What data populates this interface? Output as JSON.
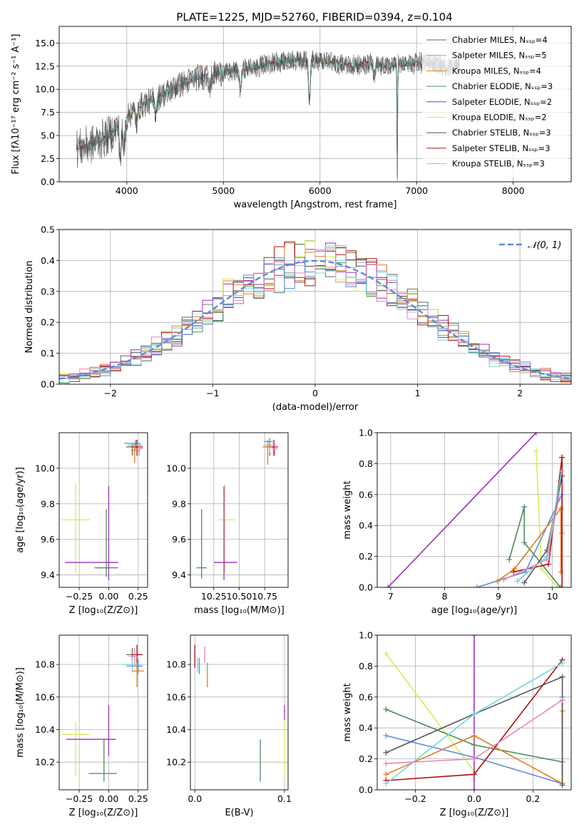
{
  "figure": {
    "title": "PLATE=1225, MJD=52760, FIBERID=0394, z=0.104"
  },
  "series_colors": {
    "Chabrier MILES": "#666666",
    "Salpeter MILES": "#a0a0a0",
    "Kroupa MILES": "#e07b1a",
    "Chabrier ELODIE": "#4f8a5a",
    "Salpeter ELODIE": "#9b2fbd",
    "Kroupa ELODIE": "#d6ec5a",
    "Chabrier STELIB": "#555555",
    "Salpeter STELIB": "#b01010",
    "Kroupa STELIB": "#70d6de",
    "extra_blue": "#5b8bd9",
    "extra_pink": "#e887b8"
  },
  "chart_data": [
    {
      "id": "spectrum",
      "type": "line",
      "xlabel": "wavelength [Angstrom, rest frame]",
      "ylabel": "Flux [fλ10⁻¹⁷ erg cm⁻² s⁻¹ A⁻¹]",
      "xlim": [
        3300,
        8600
      ],
      "ylim": [
        0,
        16.8
      ],
      "xticks": [
        "4000",
        "5000",
        "6000",
        "7000",
        "8000"
      ],
      "yticks": [
        "0.0",
        "2.5",
        "5.0",
        "7.5",
        "10.0",
        "12.5",
        "15.0"
      ],
      "legend_position": "top-right",
      "legend": [
        "Chabrier MILES, Nₛₛₚ=4",
        "Salpeter MILES, Nₛₛₚ=5",
        "Kroupa MILES, Nₛₛₚ=4",
        "Chabrier ELODIE, Nₛₛₚ=3",
        "Salpeter ELODIE, Nₛₛₚ=2",
        "Kroupa ELODIE, Nₛₛₚ=2",
        "Chabrier STELIB, Nₛₛₚ=3",
        "Salpeter STELIB, Nₛₛₚ=3",
        "Kroupa STELIB, Nₛₛₚ=3"
      ],
      "continuum": {
        "x": [
          3500,
          3650,
          3800,
          3950,
          4100,
          4300,
          4500,
          4700,
          4900,
          5100,
          5300,
          5500,
          5700,
          5900,
          6100,
          6300,
          6500,
          6700,
          6900,
          7100,
          7300,
          7450
        ],
        "y": [
          3.6,
          4.1,
          4.9,
          6.3,
          8.0,
          9.0,
          10.2,
          11.2,
          11.6,
          12.0,
          12.3,
          12.8,
          13.2,
          13.2,
          12.9,
          12.6,
          12.8,
          12.5,
          12.7,
          12.9,
          12.4,
          12.6
        ]
      },
      "absorption_features": [
        {
          "x": 3934,
          "depth": 3.5
        },
        {
          "x": 3969,
          "depth": 3.0
        },
        {
          "x": 4102,
          "depth": 1.8
        },
        {
          "x": 4300,
          "depth": 1.5
        },
        {
          "x": 4861,
          "depth": 1.6
        },
        {
          "x": 5175,
          "depth": 2.2
        },
        {
          "x": 5890,
          "depth": 4.0
        },
        {
          "x": 6563,
          "depth": 1.5
        },
        {
          "x": 6800,
          "depth": 12.0
        }
      ]
    },
    {
      "id": "residuals",
      "type": "bar",
      "xlabel": "(data-model)/error",
      "ylabel": "Normed distribution",
      "xlim": [
        -2.5,
        2.5
      ],
      "ylim": [
        0,
        0.5
      ],
      "xticks": [
        "−2",
        "−1",
        "0",
        "1",
        "2"
      ],
      "yticks": [
        "0.0",
        "0.1",
        "0.2",
        "0.3",
        "0.4",
        "0.5"
      ],
      "legend_position": "top-right",
      "legend": [
        "𝒩(0, 1)"
      ],
      "bin_width": 0.1,
      "n_histograms": 9
    },
    {
      "id": "age-vs-Z",
      "type": "scatter",
      "xlabel": "Z [log₁₀(Z/Z⊙)]",
      "ylabel": "age  [log₁₀(age/yr)]",
      "xlim": [
        -0.42,
        0.33
      ],
      "ylim": [
        9.33,
        10.2
      ],
      "xticks": [
        "−0.25",
        "0.00",
        "0.25"
      ],
      "yticks": [
        "9.4",
        "9.6",
        "9.8",
        "10.0"
      ],
      "points": [
        {
          "s": "Kroupa ELODIE",
          "x": -0.28,
          "xe": [
            0.12,
            0.12
          ],
          "y": 9.71,
          "ye": [
            0.3,
            0.2
          ]
        },
        {
          "s": "Salpeter ELODIE",
          "x": 0.0,
          "xe": [
            0.37,
            0.08
          ],
          "y": 9.47,
          "ye": [
            0.1,
            0.43
          ]
        },
        {
          "s": "Chabrier ELODIE",
          "x": -0.02,
          "xe": [
            0.1,
            0.1
          ],
          "y": 9.44,
          "ye": [
            0.05,
            0.33
          ]
        },
        {
          "s": "Chabrier MILES",
          "x": 0.2,
          "xe": [
            0.05,
            0.06
          ],
          "y": 10.12,
          "ye": [
            0.05,
            0.02
          ]
        },
        {
          "s": "Salpeter STELIB",
          "x": 0.24,
          "xe": [
            0.04,
            0.05
          ],
          "y": 10.12,
          "ye": [
            0.05,
            0.04
          ]
        },
        {
          "s": "Kroupa STELIB",
          "x": 0.22,
          "xe": [
            0.06,
            0.07
          ],
          "y": 10.13,
          "ye": [
            0.04,
            0.02
          ]
        },
        {
          "s": "extra_blue",
          "x": 0.23,
          "xe": [
            0.1,
            0.04
          ],
          "y": 10.14,
          "ye": [
            0.03,
            0.02
          ]
        },
        {
          "s": "Kroupa MILES",
          "x": 0.22,
          "xe": [
            0.03,
            0.04
          ],
          "y": 10.1,
          "ye": [
            0.07,
            0.04
          ]
        },
        {
          "s": "extra_pink",
          "x": 0.26,
          "xe": [
            0.04,
            0.03
          ],
          "y": 10.11,
          "ye": [
            0.04,
            0.03
          ]
        }
      ]
    },
    {
      "id": "age-vs-mass",
      "type": "scatter",
      "xlabel": "mass [log₁₀(M/M⊙)]",
      "ylabel": "",
      "xlim": [
        10.02,
        10.98
      ],
      "ylim": [
        9.33,
        10.2
      ],
      "xticks": [
        "10.25",
        "10.50",
        "10.75"
      ],
      "yticks": [
        "9.4",
        "9.6",
        "9.8",
        "10.0"
      ],
      "points": [
        {
          "s": "Kroupa ELODIE",
          "x": 10.36,
          "xe": [
            0.06,
            0.1
          ],
          "y": 9.71,
          "ye": [
            0.3,
            0.2
          ]
        },
        {
          "s": "Salpeter ELODIE",
          "x": 10.35,
          "xe": [
            0.1,
            0.13
          ],
          "y": 9.47,
          "ye": [
            0.1,
            0.43
          ]
        },
        {
          "s": "Chabrier ELODIE",
          "x": 10.13,
          "xe": [
            0.05,
            0.05
          ],
          "y": 9.44,
          "ye": [
            0.06,
            0.33
          ]
        },
        {
          "s": "Chabrier MILES",
          "x": 10.8,
          "xe": [
            0.04,
            0.04
          ],
          "y": 10.12,
          "ye": [
            0.05,
            0.02
          ]
        },
        {
          "s": "Salpeter STELIB",
          "x": 10.84,
          "xe": [
            0.04,
            0.04
          ],
          "y": 10.12,
          "ye": [
            0.05,
            0.04
          ]
        },
        {
          "s": "Kroupa STELIB",
          "x": 10.8,
          "xe": [
            0.06,
            0.06
          ],
          "y": 10.13,
          "ye": [
            0.04,
            0.02
          ]
        },
        {
          "s": "extra_blue",
          "x": 10.8,
          "xe": [
            0.06,
            0.03
          ],
          "y": 10.15,
          "ye": [
            0.03,
            0.02
          ]
        },
        {
          "s": "Kroupa MILES",
          "x": 10.78,
          "xe": [
            0.05,
            0.04
          ],
          "y": 10.12,
          "ye": [
            0.1,
            0.04
          ]
        },
        {
          "s": "extra_pink",
          "x": 10.85,
          "xe": [
            0.03,
            0.03
          ],
          "y": 10.11,
          "ye": [
            0.04,
            0.03
          ]
        }
      ]
    },
    {
      "id": "massweight-vs-age",
      "type": "line",
      "xlabel": "age  [log₁₀(age/yr)]",
      "ylabel": "mass weight",
      "xlim": [
        6.75,
        10.35
      ],
      "ylim": [
        0,
        1.0
      ],
      "xticks": [
        "7",
        "8",
        "9",
        "10"
      ],
      "yticks": [
        "0.0",
        "0.2",
        "0.4",
        "0.6",
        "0.8",
        "1.0"
      ],
      "series": [
        {
          "s": "Salpeter ELODIE",
          "x": [
            6.95,
            9.7
          ],
          "y": [
            0.0,
            1.0
          ]
        },
        {
          "s": "Kroupa ELODIE",
          "x": [
            9.7,
            9.8,
            10.1
          ],
          "y": [
            0.88,
            0.12,
            0.0
          ]
        },
        {
          "s": "Chabrier ELODIE",
          "x": [
            9.2,
            9.48,
            9.48,
            10.15
          ],
          "y": [
            0.18,
            0.52,
            0.29,
            0.0
          ]
        },
        {
          "s": "extra_blue",
          "x": [
            8.6,
            9.5,
            10.18,
            10.18
          ],
          "y": [
            0.0,
            0.1,
            0.6,
            0.35
          ]
        },
        {
          "s": "Kroupa MILES",
          "x": [
            8.98,
            9.3,
            10.16,
            10.16
          ],
          "y": [
            0.04,
            0.12,
            0.51,
            0.1
          ]
        },
        {
          "s": "Chabrier STELIB",
          "x": [
            9.48,
            9.9,
            10.18,
            10.18
          ],
          "y": [
            0.03,
            0.24,
            0.72,
            0.84
          ]
        },
        {
          "s": "Salpeter STELIB",
          "x": [
            9.28,
            9.93,
            10.18,
            10.18
          ],
          "y": [
            0.1,
            0.15,
            0.84,
            0.0
          ]
        },
        {
          "s": "Kroupa STELIB",
          "x": [
            9.35,
            9.9,
            10.17
          ],
          "y": [
            0.04,
            0.2,
            0.75
          ]
        },
        {
          "s": "extra_pink",
          "x": [
            9.1,
            9.9,
            10.12
          ],
          "y": [
            0.05,
            0.18,
            0.58
          ]
        }
      ]
    },
    {
      "id": "mass-vs-Z",
      "type": "scatter",
      "xlabel": "Z [log₁₀(Z/Z⊙)]",
      "ylabel": "mass [log₁₀(M/M⊙)]",
      "xlim": [
        -0.42,
        0.33
      ],
      "ylim": [
        10.03,
        10.98
      ],
      "xticks": [
        "−0.25",
        "0.00",
        "0.25"
      ],
      "yticks": [
        "10.2",
        "10.4",
        "10.6",
        "10.8"
      ],
      "points": [
        {
          "s": "Kroupa ELODIE",
          "x": -0.28,
          "xe": [
            0.12,
            0.12
          ],
          "y": 10.37,
          "ye": [
            0.26,
            0.08
          ]
        },
        {
          "s": "Salpeter ELODIE",
          "x": 0.0,
          "xe": [
            0.36,
            0.06
          ],
          "y": 10.34,
          "ye": [
            0.1,
            0.21
          ]
        },
        {
          "s": "Chabrier ELODIE",
          "x": -0.04,
          "xe": [
            0.13,
            0.11
          ],
          "y": 10.13,
          "ye": [
            0.05,
            0.21
          ]
        },
        {
          "s": "Chabrier MILES",
          "x": 0.2,
          "xe": [
            0.05,
            0.06
          ],
          "y": 10.86,
          "ye": [
            0.05,
            0.04
          ]
        },
        {
          "s": "Salpeter STELIB",
          "x": 0.24,
          "xe": [
            0.04,
            0.05
          ],
          "y": 10.86,
          "ye": [
            0.08,
            0.06
          ]
        },
        {
          "s": "Kroupa STELIB",
          "x": 0.2,
          "xe": [
            0.08,
            0.08
          ],
          "y": 10.8,
          "ye": [
            0.05,
            0.04
          ]
        },
        {
          "s": "extra_blue",
          "x": 0.25,
          "xe": [
            0.1,
            0.04
          ],
          "y": 10.79,
          "ye": [
            0.05,
            0.04
          ]
        },
        {
          "s": "Kroupa MILES",
          "x": 0.24,
          "xe": [
            0.04,
            0.06
          ],
          "y": 10.76,
          "ye": [
            0.1,
            0.05
          ]
        },
        {
          "s": "extra_pink",
          "x": 0.22,
          "xe": [
            0.05,
            0.03
          ],
          "y": 10.85,
          "ye": [
            0.06,
            0.05
          ]
        }
      ]
    },
    {
      "id": "mass-vs-ebv",
      "type": "scatter",
      "xlabel": "E(B-V)",
      "ylabel": "",
      "xlim": [
        -0.005,
        0.104
      ],
      "ylim": [
        10.03,
        10.98
      ],
      "xticks": [
        "0.0",
        "0.1"
      ],
      "yticks": [
        "10.2",
        "10.4",
        "10.6",
        "10.8"
      ],
      "points": [
        {
          "s": "Salpeter STELIB",
          "x": 0.0,
          "xe": [
            0,
            0
          ],
          "y": 10.86,
          "ye": [
            0.08,
            0.06
          ]
        },
        {
          "s": "extra_blue",
          "x": 0.005,
          "xe": [
            0,
            0
          ],
          "y": 10.8,
          "ye": [
            0.06,
            0.04
          ]
        },
        {
          "s": "Kroupa STELIB",
          "x": 0.003,
          "xe": [
            0,
            0
          ],
          "y": 10.8,
          "ye": [
            0.05,
            0.04
          ]
        },
        {
          "s": "extra_pink",
          "x": 0.011,
          "xe": [
            0,
            0
          ],
          "y": 10.86,
          "ye": [
            0.05,
            0.05
          ]
        },
        {
          "s": "Kroupa MILES",
          "x": 0.014,
          "xe": [
            0,
            0
          ],
          "y": 10.76,
          "ye": [
            0.1,
            0.05
          ]
        },
        {
          "s": "Chabrier ELODIE",
          "x": 0.073,
          "xe": [
            0,
            0
          ],
          "y": 10.13,
          "ye": [
            0.05,
            0.21
          ]
        },
        {
          "s": "Kroupa ELODIE",
          "x": 0.1,
          "xe": [
            0,
            0
          ],
          "y": 10.37,
          "ye": [
            0.26,
            0.08
          ]
        },
        {
          "s": "Salpeter ELODIE",
          "x": 0.1,
          "xe": [
            0,
            0
          ],
          "y": 10.5,
          "ye": [
            0.04,
            0.05
          ]
        }
      ]
    },
    {
      "id": "massweight-vs-Z",
      "type": "line",
      "xlabel": "Z [log₁₀(Z/Z⊙)]",
      "ylabel": "mass weight",
      "xlim": [
        -0.33,
        0.33
      ],
      "ylim": [
        0,
        1.0
      ],
      "xticks": [
        "−0.2",
        "0.0",
        "0.2"
      ],
      "yticks": [
        "0.0",
        "0.2",
        "0.4",
        "0.6",
        "0.8",
        "1.0"
      ],
      "series": [
        {
          "s": "Kroupa ELODIE",
          "x": [
            -0.3,
            0.0
          ],
          "y": [
            0.88,
            0.12
          ]
        },
        {
          "s": "Salpeter ELODIE",
          "x": [
            0.0,
            0.0
          ],
          "y": [
            0.0,
            1.0
          ]
        },
        {
          "s": "Chabrier ELODIE",
          "x": [
            -0.3,
            0.0,
            0.3
          ],
          "y": [
            0.52,
            0.29,
            0.18
          ]
        },
        {
          "s": "extra_blue",
          "x": [
            -0.3,
            0.0,
            0.3,
            0.3
          ],
          "y": [
            0.35,
            0.21,
            0.04,
            0.6
          ]
        },
        {
          "s": "Kroupa MILES",
          "x": [
            -0.3,
            0.0,
            0.3,
            0.3
          ],
          "y": [
            0.1,
            0.35,
            0.04,
            0.51
          ]
        },
        {
          "s": "Chabrier STELIB",
          "x": [
            -0.3,
            0.0,
            0.3,
            0.3
          ],
          "y": [
            0.24,
            0.49,
            0.73,
            0.03
          ]
        },
        {
          "s": "Salpeter STELIB",
          "x": [
            -0.3,
            0.0,
            0.3
          ],
          "y": [
            0.06,
            0.1,
            0.84
          ]
        },
        {
          "s": "Kroupa STELIB",
          "x": [
            -0.3,
            0.0,
            0.3
          ],
          "y": [
            0.04,
            0.49,
            0.82
          ]
        },
        {
          "s": "extra_pink",
          "x": [
            -0.3,
            0.0,
            0.3
          ],
          "y": [
            0.17,
            0.2,
            0.58
          ]
        }
      ]
    }
  ]
}
